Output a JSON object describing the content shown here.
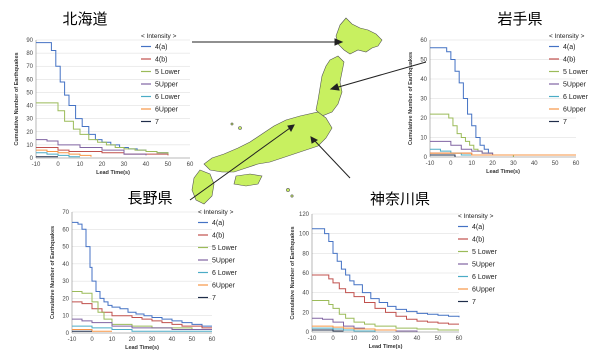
{
  "legend_header": "< Intensity >",
  "intensity_classes": [
    "4(a)",
    "4(b)",
    "5 Lower",
    "5Upper",
    "6 Lower",
    "6Upper",
    "7"
  ],
  "colors": [
    "#4472c4",
    "#c0504d",
    "#9bbb59",
    "#8064a2",
    "#4bacc6",
    "#f79646",
    "#1f2d4a"
  ],
  "map": {
    "fill": "#c8f060",
    "stroke": "#555555"
  },
  "chart_data": [
    {
      "type": "line",
      "title": "北海道",
      "xlabel": "Lead Time(s)",
      "ylabel": "Cumulative Number of Earthquakes",
      "xlim": [
        -10,
        60
      ],
      "ylim": [
        0,
        90
      ],
      "xticks": [
        -10,
        0,
        10,
        20,
        30,
        40,
        50,
        60
      ],
      "yticks": [
        0,
        10,
        20,
        30,
        40,
        50,
        60,
        70,
        80,
        90
      ],
      "series": [
        {
          "name": "4(a)",
          "x": [
            -10,
            -6,
            -3,
            -1,
            1,
            3,
            5,
            8,
            11,
            14,
            17,
            20,
            24,
            28,
            32,
            36,
            40,
            45,
            50
          ],
          "y": [
            88,
            88,
            82,
            70,
            58,
            48,
            40,
            30,
            24,
            18,
            14,
            12,
            10,
            8,
            7,
            6,
            5,
            4,
            3
          ]
        },
        {
          "name": "4(b)",
          "x": [
            -10,
            -5,
            0,
            5,
            10,
            20,
            30,
            40,
            50
          ],
          "y": [
            8,
            8,
            6,
            5,
            5,
            4,
            3,
            3,
            2
          ]
        },
        {
          "name": "5 Lower",
          "x": [
            -10,
            -5,
            0,
            3,
            7,
            10,
            14,
            18,
            22,
            26,
            30,
            35,
            40,
            45,
            50
          ],
          "y": [
            42,
            42,
            36,
            28,
            22,
            18,
            14,
            12,
            10,
            8,
            7,
            6,
            5,
            4,
            3
          ]
        },
        {
          "name": "5Upper",
          "x": [
            -10,
            -5,
            0,
            10,
            20,
            30,
            40
          ],
          "y": [
            14,
            13,
            10,
            8,
            6,
            3,
            2
          ]
        },
        {
          "name": "6 Lower",
          "x": [
            -10,
            -5,
            0,
            5,
            10
          ],
          "y": [
            4,
            3,
            2,
            1,
            1
          ]
        },
        {
          "name": "6Upper",
          "x": [
            -10,
            -5,
            0,
            5,
            10,
            15
          ],
          "y": [
            6,
            5,
            4,
            3,
            2,
            1
          ]
        },
        {
          "name": "7",
          "x": [
            -10,
            -5,
            0
          ],
          "y": [
            1,
            1,
            1
          ]
        }
      ]
    },
    {
      "type": "line",
      "title": "岩手県",
      "xlabel": "Lead Time(s)",
      "ylabel": "Cumulative Number of Earthquakes",
      "xlim": [
        -10,
        60
      ],
      "ylim": [
        0,
        60
      ],
      "xticks": [
        -10,
        0,
        10,
        20,
        30,
        40,
        50,
        60
      ],
      "yticks": [
        0,
        10,
        20,
        30,
        40,
        50,
        60
      ],
      "series": [
        {
          "name": "4(a)",
          "x": [
            -10,
            -5,
            -2,
            0,
            2,
            4,
            6,
            8,
            10,
            12,
            14,
            16,
            18,
            20,
            25,
            30
          ],
          "y": [
            56,
            56,
            54,
            50,
            44,
            38,
            30,
            22,
            16,
            10,
            6,
            4,
            2,
            1,
            1,
            0
          ]
        },
        {
          "name": "4(b)",
          "x": [
            -10,
            -5,
            0,
            3,
            6,
            10,
            20,
            30,
            40,
            50,
            60
          ],
          "y": [
            2,
            2,
            2,
            2,
            2,
            1,
            1,
            1,
            1,
            1,
            1
          ]
        },
        {
          "name": "5 Lower",
          "x": [
            -10,
            -3,
            -1,
            1,
            3,
            5,
            7,
            9,
            11,
            13,
            15,
            20,
            25,
            30
          ],
          "y": [
            22,
            22,
            20,
            16,
            12,
            10,
            8,
            6,
            4,
            3,
            2,
            1,
            1,
            0
          ]
        },
        {
          "name": "5Upper",
          "x": [
            -10,
            -5,
            0,
            5,
            10,
            15,
            20,
            60
          ],
          "y": [
            8,
            8,
            6,
            4,
            3,
            2,
            1,
            1
          ]
        },
        {
          "name": "6 Lower",
          "x": [
            -10,
            -5,
            0,
            5,
            10,
            60
          ],
          "y": [
            4,
            3,
            2,
            1,
            1,
            1
          ]
        },
        {
          "name": "6Upper",
          "x": [
            -10,
            -5,
            0,
            5,
            10,
            20,
            60
          ],
          "y": [
            2,
            2,
            2,
            2,
            1,
            1,
            1
          ]
        },
        {
          "name": "7",
          "x": [
            -10,
            -5,
            0,
            2
          ],
          "y": [
            1,
            1,
            1,
            0
          ]
        }
      ]
    },
    {
      "type": "line",
      "title": "長野県",
      "xlabel": "Lead Time(s)",
      "ylabel": "Cumulative Number of Earthquakes",
      "xlim": [
        -10,
        60
      ],
      "ylim": [
        0,
        70
      ],
      "xticks": [
        -10,
        0,
        10,
        20,
        30,
        40,
        50,
        60
      ],
      "yticks": [
        0,
        10,
        20,
        30,
        40,
        50,
        60,
        70
      ],
      "series": [
        {
          "name": "4(a)",
          "x": [
            -10,
            -7,
            -5,
            -3,
            -1,
            0,
            2,
            4,
            6,
            8,
            10,
            14,
            18,
            22,
            26,
            30,
            35,
            40,
            45,
            50,
            55,
            60
          ],
          "y": [
            64,
            63,
            60,
            50,
            38,
            30,
            24,
            20,
            18,
            16,
            15,
            14,
            12,
            11,
            10,
            9,
            8,
            7,
            6,
            5,
            4,
            4
          ]
        },
        {
          "name": "4(b)",
          "x": [
            -10,
            -5,
            0,
            5,
            10,
            15,
            20,
            25,
            30,
            35,
            40,
            45,
            50,
            55,
            60
          ],
          "y": [
            18,
            17,
            14,
            12,
            10,
            10,
            9,
            8,
            7,
            6,
            5,
            4,
            4,
            3,
            3
          ]
        },
        {
          "name": "5 Lower",
          "x": [
            -10,
            -5,
            0,
            3,
            6,
            10,
            20,
            30,
            40,
            50,
            60
          ],
          "y": [
            24,
            23,
            18,
            12,
            8,
            5,
            4,
            3,
            3,
            2,
            2
          ]
        },
        {
          "name": "5Upper",
          "x": [
            -10,
            -5,
            0,
            10,
            20,
            40,
            60
          ],
          "y": [
            8,
            7,
            6,
            4,
            3,
            2,
            2
          ]
        },
        {
          "name": "6 Lower",
          "x": [
            -10,
            -5,
            0,
            10,
            20,
            60
          ],
          "y": [
            4,
            4,
            3,
            2,
            1,
            1
          ]
        },
        {
          "name": "6Upper",
          "x": [
            -10,
            -5,
            0,
            5,
            10
          ],
          "y": [
            2,
            2,
            1,
            1,
            1
          ]
        },
        {
          "name": "7",
          "x": [
            -10,
            -5,
            0
          ],
          "y": [
            1,
            1,
            1
          ]
        }
      ]
    },
    {
      "type": "line",
      "title": "神奈川県",
      "xlabel": "Lead Time(s)",
      "ylabel": "Cumulative Number of Earthquakes",
      "xlim": [
        -10,
        60
      ],
      "ylim": [
        0,
        120
      ],
      "xticks": [
        -10,
        0,
        10,
        20,
        30,
        40,
        50,
        60
      ],
      "yticks": [
        0,
        20,
        40,
        60,
        80,
        100,
        120
      ],
      "series": [
        {
          "name": "4(a)",
          "x": [
            -10,
            -6,
            -4,
            -2,
            0,
            2,
            4,
            6,
            8,
            10,
            14,
            18,
            22,
            26,
            30,
            35,
            40,
            45,
            50,
            55,
            60
          ],
          "y": [
            105,
            105,
            100,
            92,
            80,
            72,
            64,
            58,
            52,
            48,
            40,
            34,
            30,
            26,
            23,
            21,
            19,
            18,
            17,
            16,
            15
          ]
        },
        {
          "name": "4(b)",
          "x": [
            -10,
            -5,
            -2,
            0,
            3,
            6,
            10,
            15,
            20,
            25,
            30,
            35,
            40,
            45,
            50,
            55,
            60
          ],
          "y": [
            58,
            58,
            54,
            50,
            44,
            40,
            36,
            30,
            24,
            20,
            16,
            13,
            11,
            10,
            9,
            8,
            8
          ]
        },
        {
          "name": "5 Lower",
          "x": [
            -10,
            -5,
            -2,
            0,
            3,
            6,
            10,
            15,
            20,
            30,
            40,
            50,
            60
          ],
          "y": [
            32,
            32,
            28,
            24,
            18,
            14,
            10,
            8,
            6,
            4,
            3,
            2,
            2
          ]
        },
        {
          "name": "5Upper",
          "x": [
            -10,
            -5,
            0,
            5,
            10,
            15,
            20,
            30,
            40
          ],
          "y": [
            14,
            13,
            10,
            6,
            4,
            3,
            2,
            1,
            0
          ]
        },
        {
          "name": "6 Lower",
          "x": [
            -10,
            -5,
            0,
            5,
            10,
            20
          ],
          "y": [
            4,
            4,
            3,
            2,
            1,
            0
          ]
        },
        {
          "name": "6Upper",
          "x": [
            -10,
            -5,
            0,
            5,
            10,
            20,
            30
          ],
          "y": [
            6,
            6,
            5,
            4,
            3,
            2,
            1
          ]
        },
        {
          "name": "7",
          "x": [
            -10,
            -5,
            0,
            5
          ],
          "y": [
            2,
            2,
            1,
            1
          ]
        }
      ]
    }
  ]
}
